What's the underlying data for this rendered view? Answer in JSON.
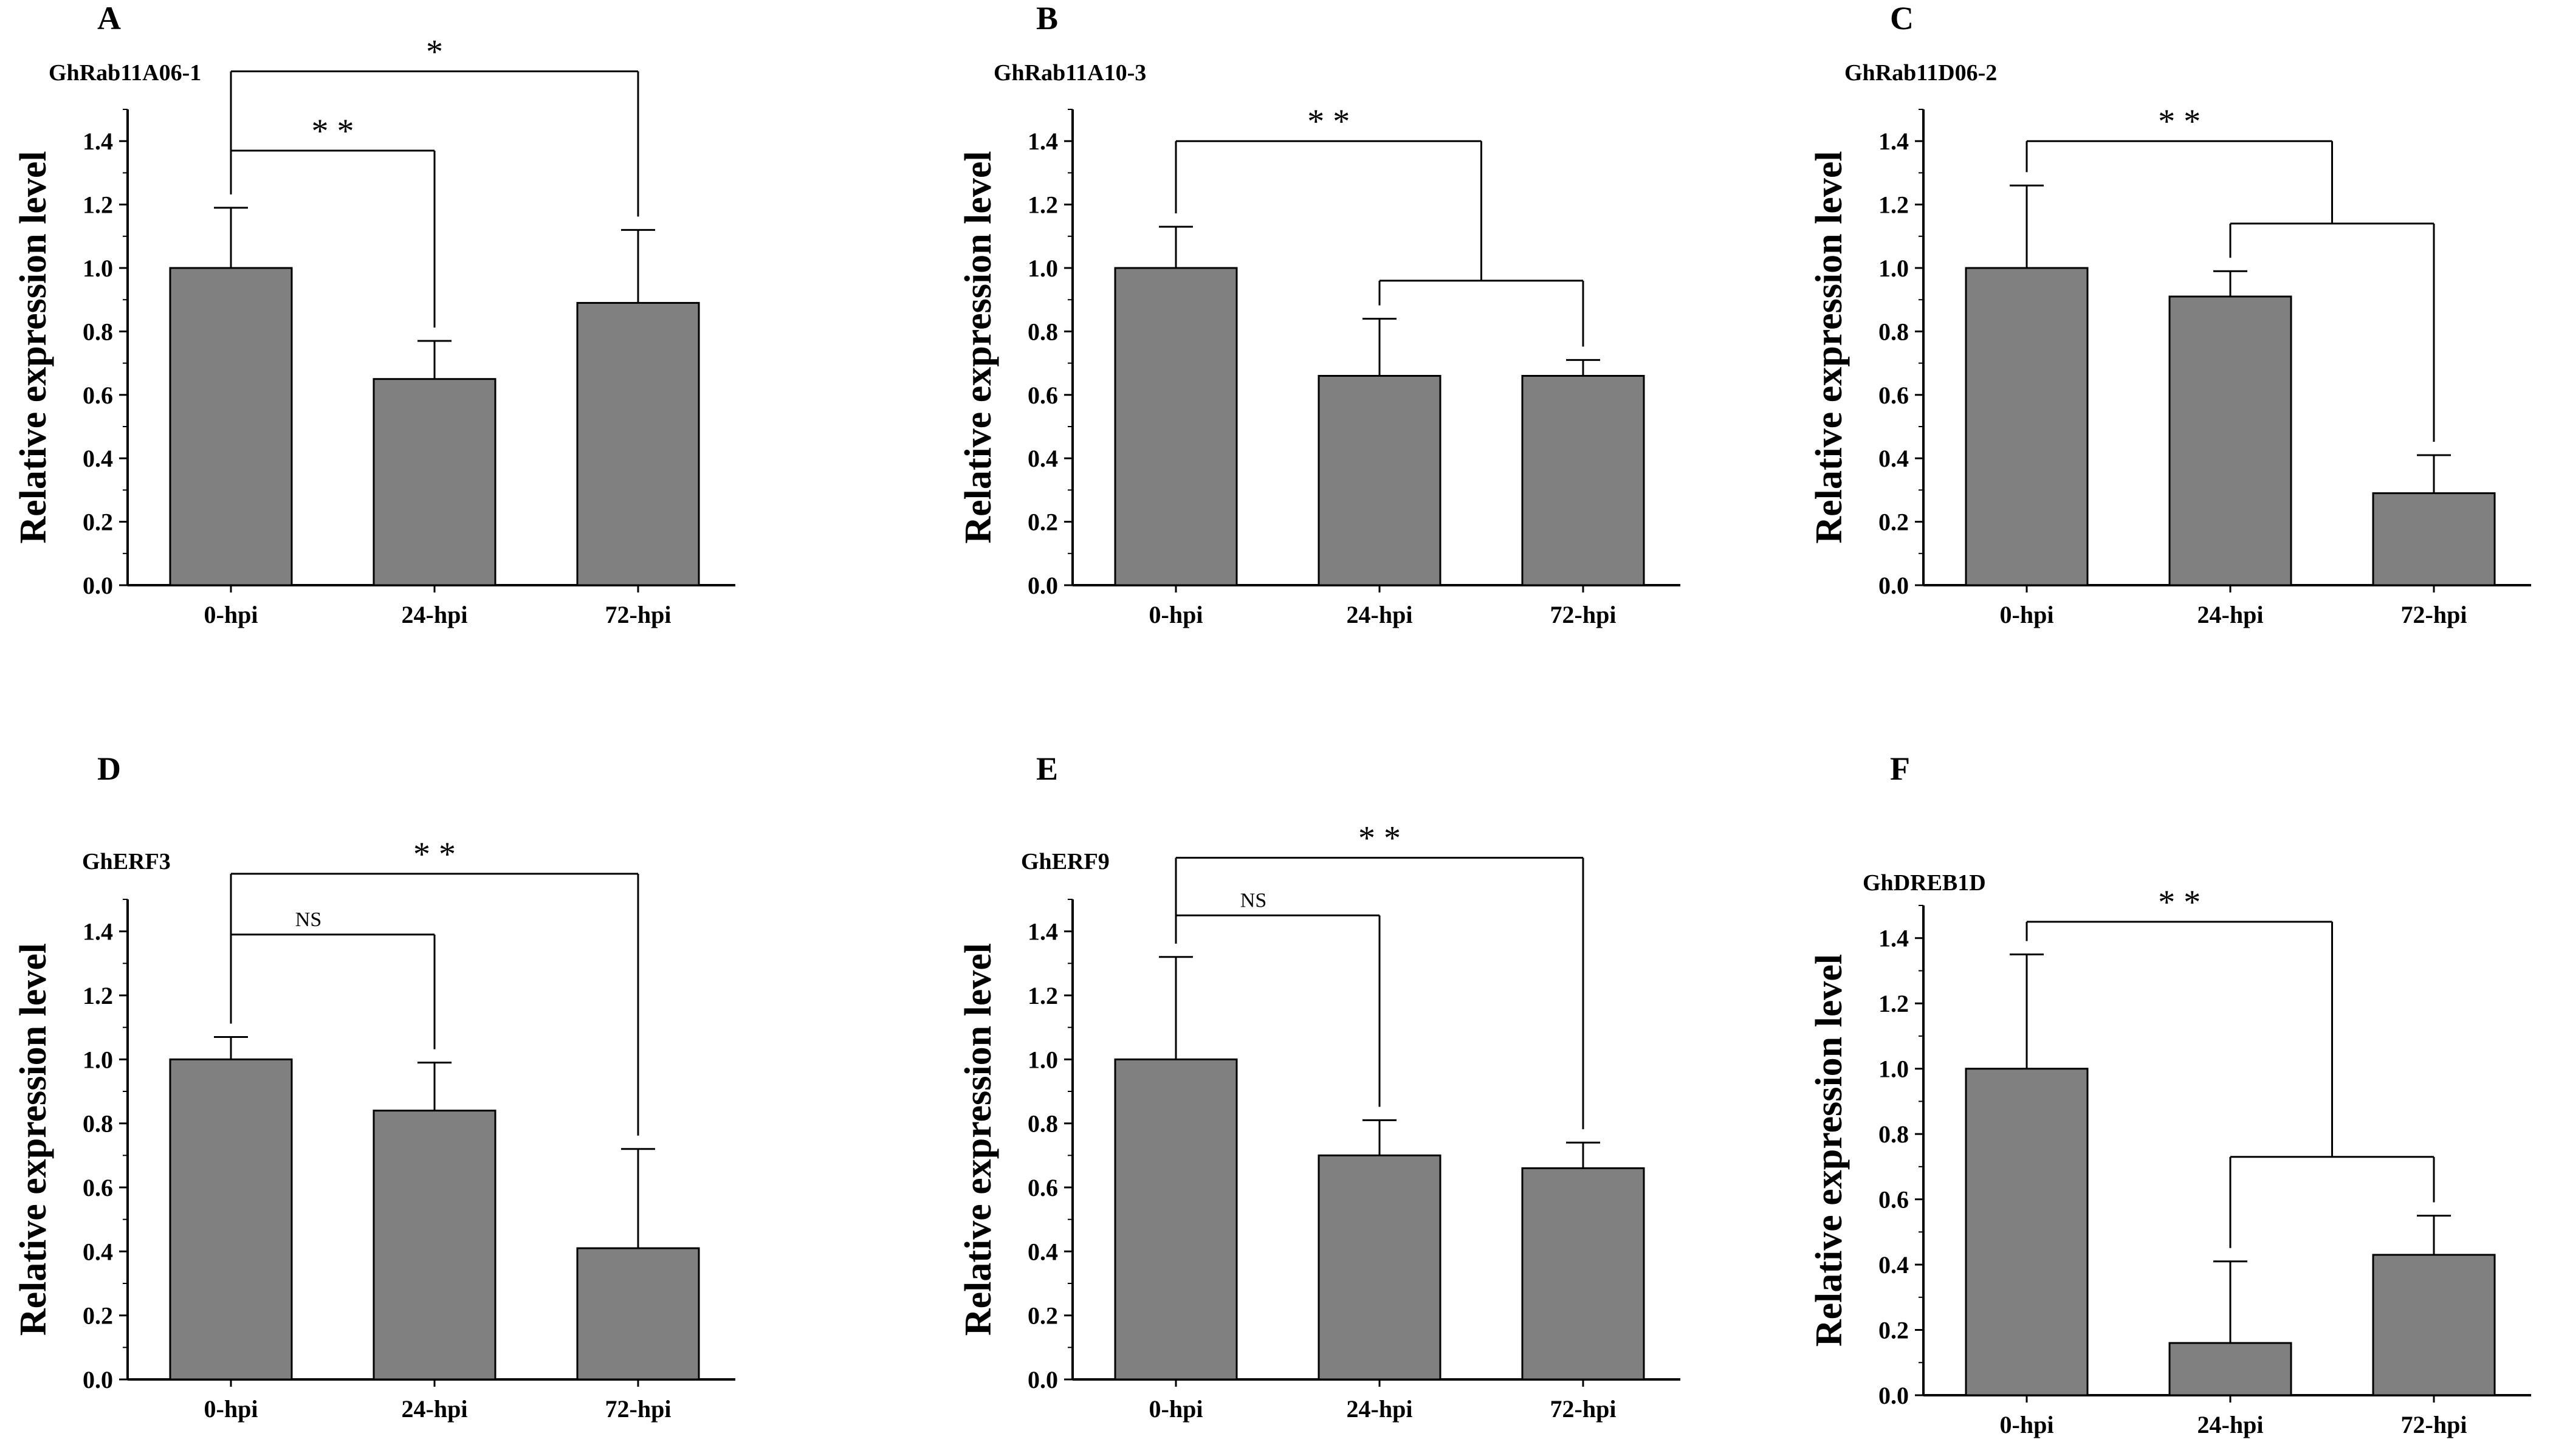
{
  "colors": {
    "bar": "#808080",
    "stroke": "#000000",
    "background": "#ffffff"
  },
  "chart_data": [
    {
      "panel": "A",
      "type": "bar",
      "title": "GhRab11A06-1",
      "ylabel": "Relative expression level",
      "xlabel": "",
      "categories": [
        "0-hpi",
        "24-hpi",
        "72-hpi"
      ],
      "values": [
        1.0,
        0.65,
        0.89
      ],
      "errors": [
        0.19,
        0.12,
        0.23
      ],
      "ylim": [
        0,
        1.5
      ],
      "yticks": [
        0.0,
        0.2,
        0.4,
        0.6,
        0.8,
        1.0,
        1.2,
        1.4
      ],
      "significance": [
        {
          "type": "pair",
          "from": 0,
          "to": 2,
          "level": 1.62,
          "label": "*"
        },
        {
          "type": "pair",
          "from": 0,
          "to": 1,
          "level": 1.37,
          "label": "* *"
        }
      ]
    },
    {
      "panel": "B",
      "type": "bar",
      "title": "GhRab11A10-3",
      "ylabel": "Relative expression level",
      "xlabel": "",
      "categories": [
        "0-hpi",
        "24-hpi",
        "72-hpi"
      ],
      "values": [
        1.0,
        0.66,
        0.66
      ],
      "errors": [
        0.13,
        0.18,
        0.05
      ],
      "ylim": [
        0,
        1.5
      ],
      "yticks": [
        0.0,
        0.2,
        0.4,
        0.6,
        0.8,
        1.0,
        1.2,
        1.4
      ],
      "significance": [
        {
          "type": "group",
          "from": 0,
          "groupFrom": 1,
          "groupTo": 2,
          "level": 1.4,
          "innerLevel": 0.96,
          "label": "* *"
        }
      ]
    },
    {
      "panel": "C",
      "type": "bar",
      "title": "GhRab11D06-2",
      "ylabel": "Relative expression level",
      "xlabel": "",
      "categories": [
        "0-hpi",
        "24-hpi",
        "72-hpi"
      ],
      "values": [
        1.0,
        0.91,
        0.29
      ],
      "errors": [
        0.26,
        0.08,
        0.12
      ],
      "ylim": [
        0,
        1.5
      ],
      "yticks": [
        0.0,
        0.2,
        0.4,
        0.6,
        0.8,
        1.0,
        1.2,
        1.4
      ],
      "significance": [
        {
          "type": "group",
          "from": 0,
          "groupFrom": 1,
          "groupTo": 2,
          "level": 1.4,
          "innerLevel": 1.14,
          "label": "* *"
        }
      ]
    },
    {
      "panel": "D",
      "type": "bar",
      "title": "GhERF3",
      "ylabel": "Relative expression level",
      "xlabel": "",
      "categories": [
        "0-hpi",
        "24-hpi",
        "72-hpi"
      ],
      "values": [
        1.0,
        0.84,
        0.41
      ],
      "errors": [
        0.07,
        0.15,
        0.31
      ],
      "ylim": [
        0,
        1.5
      ],
      "yticks": [
        0.0,
        0.2,
        0.4,
        0.6,
        0.8,
        1.0,
        1.2,
        1.4
      ],
      "significance": [
        {
          "type": "pair",
          "from": 0,
          "to": 2,
          "level": 1.58,
          "label": "* *"
        },
        {
          "type": "pair",
          "from": 0,
          "to": 1,
          "level": 1.39,
          "label": "NS"
        }
      ]
    },
    {
      "panel": "E",
      "type": "bar",
      "title": "GhERF9",
      "ylabel": "Relative expression level",
      "xlabel": "",
      "categories": [
        "0-hpi",
        "24-hpi",
        "72-hpi"
      ],
      "values": [
        1.0,
        0.7,
        0.66
      ],
      "errors": [
        0.32,
        0.11,
        0.08
      ],
      "ylim": [
        0,
        1.5
      ],
      "yticks": [
        0.0,
        0.2,
        0.4,
        0.6,
        0.8,
        1.0,
        1.2,
        1.4
      ],
      "significance": [
        {
          "type": "pair",
          "from": 0,
          "to": 2,
          "level": 1.63,
          "label": "* *"
        },
        {
          "type": "pair",
          "from": 0,
          "to": 1,
          "level": 1.45,
          "label": "NS"
        }
      ]
    },
    {
      "panel": "F",
      "type": "bar",
      "title": "GhDREB1D",
      "ylabel": "Relative expression level",
      "xlabel": "",
      "categories": [
        "0-hpi",
        "24-hpi",
        "72-hpi"
      ],
      "values": [
        1.0,
        0.16,
        0.43
      ],
      "errors": [
        0.35,
        0.25,
        0.12
      ],
      "ylim": [
        0,
        1.5
      ],
      "yticks": [
        0.0,
        0.2,
        0.4,
        0.6,
        0.8,
        1.0,
        1.2,
        1.4
      ],
      "significance": [
        {
          "type": "group",
          "from": 0,
          "groupFrom": 1,
          "groupTo": 2,
          "level": 1.45,
          "innerLevel": 0.73,
          "label": "* *"
        }
      ]
    }
  ]
}
